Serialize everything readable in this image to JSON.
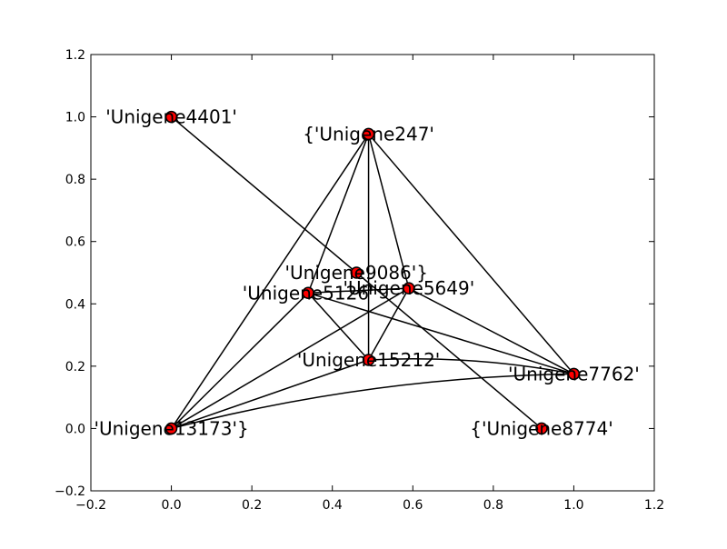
{
  "chart_data": {
    "type": "scatter",
    "xlim": [
      -0.2,
      1.2
    ],
    "ylim": [
      -0.2,
      1.2
    ],
    "x_ticks": [
      "−0.2",
      "0.0",
      "0.2",
      "0.4",
      "0.6",
      "0.8",
      "1.0",
      "1.2"
    ],
    "y_ticks": [
      "−0.2",
      "0.0",
      "0.2",
      "0.4",
      "0.6",
      "0.8",
      "1.0",
      "1.2"
    ],
    "grid": false,
    "colors": {
      "node_fill": "#ff0000",
      "node_stroke": "#000000",
      "edge": "#000000"
    },
    "nodes": [
      {
        "id": "n4401",
        "label": "'Unigene4401'",
        "x": 0.0,
        "y": 1.0
      },
      {
        "id": "n247",
        "label": "{'Unigene247'",
        "x": 0.49,
        "y": 0.945
      },
      {
        "id": "n9086",
        "label": "'Unigene9086'}",
        "x": 0.46,
        "y": 0.5
      },
      {
        "id": "n5649",
        "label": "'Unigene5649'",
        "x": 0.59,
        "y": 0.45
      },
      {
        "id": "n5126",
        "label": "'Unigene5126'",
        "x": 0.34,
        "y": 0.435
      },
      {
        "id": "n15212",
        "label": "'Unigene15212'",
        "x": 0.49,
        "y": 0.22
      },
      {
        "id": "n7762",
        "label": "'Unigene7762'",
        "x": 1.0,
        "y": 0.175
      },
      {
        "id": "n13173",
        "label": "'Unigene13173'}",
        "x": 0.0,
        "y": 0.0
      },
      {
        "id": "n8774",
        "label": "{'Unigene8774'",
        "x": 0.92,
        "y": 0.0
      }
    ],
    "edges": [
      {
        "from": "n4401",
        "to": "n8774"
      },
      {
        "from": "n247",
        "to": "n5126"
      },
      {
        "from": "n247",
        "to": "n5649"
      },
      {
        "from": "n247",
        "to": "n15212"
      },
      {
        "from": "n247",
        "to": "n7762"
      },
      {
        "from": "n247",
        "to": "n13173"
      },
      {
        "from": "n5126",
        "to": "n5649"
      },
      {
        "from": "n5126",
        "to": "n15212"
      },
      {
        "from": "n5126",
        "to": "n7762"
      },
      {
        "from": "n5126",
        "to": "n13173"
      },
      {
        "from": "n5649",
        "to": "n15212"
      },
      {
        "from": "n5649",
        "to": "n7762"
      },
      {
        "from": "n5649",
        "to": "n13173"
      },
      {
        "from": "n15212",
        "to": "n13173"
      },
      {
        "from": "n15212",
        "to": "n7762",
        "curved": true
      },
      {
        "from": "n13173",
        "to": "n7762",
        "curved": true
      }
    ]
  }
}
